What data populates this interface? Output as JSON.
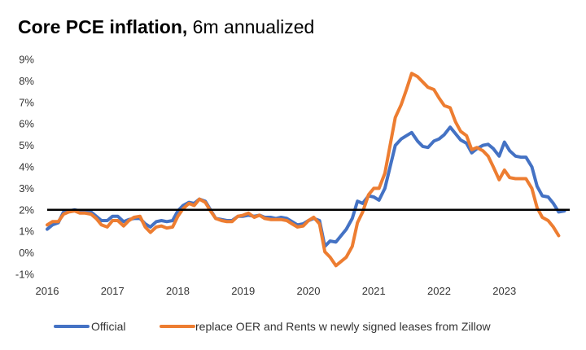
{
  "title": {
    "bold": "Core PCE inflation,",
    "rest": " 6m annualized"
  },
  "chart_data": {
    "type": "line",
    "title": "Core PCE inflation, 6m annualized",
    "xlabel": "",
    "ylabel": "",
    "xlim": [
      2016.0,
      2024.0
    ],
    "ylim": [
      -1,
      9
    ],
    "yticks": [
      "-1%",
      "0%",
      "1%",
      "2%",
      "3%",
      "4%",
      "5%",
      "6%",
      "7%",
      "8%",
      "9%"
    ],
    "xticks": [
      "2016",
      "2017",
      "2018",
      "2019",
      "2020",
      "2021",
      "2022",
      "2023"
    ],
    "grid": false,
    "legend": "bottom",
    "reference_line": {
      "y": 2,
      "color": "#000000"
    },
    "series": [
      {
        "name": "Official",
        "color": "#4472C4",
        "points": [
          [
            2016.0,
            1.1
          ],
          [
            2016.08,
            1.3
          ],
          [
            2016.17,
            1.4
          ],
          [
            2016.25,
            1.9
          ],
          [
            2016.33,
            1.95
          ],
          [
            2016.42,
            2.0
          ],
          [
            2016.5,
            1.95
          ],
          [
            2016.58,
            1.95
          ],
          [
            2016.67,
            1.9
          ],
          [
            2016.75,
            1.7
          ],
          [
            2016.83,
            1.5
          ],
          [
            2016.92,
            1.5
          ],
          [
            2017.0,
            1.7
          ],
          [
            2017.08,
            1.7
          ],
          [
            2017.17,
            1.45
          ],
          [
            2017.25,
            1.55
          ],
          [
            2017.33,
            1.6
          ],
          [
            2017.42,
            1.6
          ],
          [
            2017.5,
            1.35
          ],
          [
            2017.58,
            1.2
          ],
          [
            2017.67,
            1.45
          ],
          [
            2017.75,
            1.5
          ],
          [
            2017.83,
            1.45
          ],
          [
            2017.92,
            1.5
          ],
          [
            2018.0,
            1.95
          ],
          [
            2018.08,
            2.2
          ],
          [
            2018.17,
            2.35
          ],
          [
            2018.25,
            2.3
          ],
          [
            2018.33,
            2.5
          ],
          [
            2018.42,
            2.4
          ],
          [
            2018.5,
            2.0
          ],
          [
            2018.58,
            1.6
          ],
          [
            2018.67,
            1.55
          ],
          [
            2018.75,
            1.5
          ],
          [
            2018.83,
            1.5
          ],
          [
            2018.92,
            1.7
          ],
          [
            2019.0,
            1.7
          ],
          [
            2019.08,
            1.75
          ],
          [
            2019.17,
            1.7
          ],
          [
            2019.25,
            1.75
          ],
          [
            2019.33,
            1.65
          ],
          [
            2019.42,
            1.65
          ],
          [
            2019.5,
            1.6
          ],
          [
            2019.58,
            1.65
          ],
          [
            2019.67,
            1.6
          ],
          [
            2019.75,
            1.45
          ],
          [
            2019.83,
            1.3
          ],
          [
            2019.92,
            1.35
          ],
          [
            2020.0,
            1.5
          ],
          [
            2020.08,
            1.6
          ],
          [
            2020.17,
            1.5
          ],
          [
            2020.25,
            0.3
          ],
          [
            2020.33,
            0.55
          ],
          [
            2020.42,
            0.5
          ],
          [
            2020.5,
            0.8
          ],
          [
            2020.58,
            1.1
          ],
          [
            2020.67,
            1.6
          ],
          [
            2020.75,
            2.4
          ],
          [
            2020.83,
            2.3
          ],
          [
            2020.92,
            2.65
          ],
          [
            2021.0,
            2.6
          ],
          [
            2021.08,
            2.45
          ],
          [
            2021.17,
            3.0
          ],
          [
            2021.25,
            4.0
          ],
          [
            2021.33,
            5.0
          ],
          [
            2021.42,
            5.3
          ],
          [
            2021.5,
            5.45
          ],
          [
            2021.58,
            5.6
          ],
          [
            2021.67,
            5.2
          ],
          [
            2021.75,
            4.95
          ],
          [
            2021.83,
            4.9
          ],
          [
            2021.92,
            5.2
          ],
          [
            2022.0,
            5.3
          ],
          [
            2022.08,
            5.5
          ],
          [
            2022.17,
            5.85
          ],
          [
            2022.25,
            5.55
          ],
          [
            2022.33,
            5.25
          ],
          [
            2022.42,
            5.1
          ],
          [
            2022.5,
            4.65
          ],
          [
            2022.58,
            4.85
          ],
          [
            2022.67,
            5.0
          ],
          [
            2022.75,
            5.05
          ],
          [
            2022.83,
            4.85
          ],
          [
            2022.92,
            4.5
          ],
          [
            2023.0,
            5.15
          ],
          [
            2023.08,
            4.75
          ],
          [
            2023.17,
            4.5
          ],
          [
            2023.25,
            4.45
          ],
          [
            2023.33,
            4.45
          ],
          [
            2023.42,
            4.0
          ],
          [
            2023.5,
            3.1
          ],
          [
            2023.58,
            2.65
          ],
          [
            2023.67,
            2.6
          ],
          [
            2023.75,
            2.3
          ],
          [
            2023.83,
            1.9
          ],
          [
            2023.92,
            1.95
          ]
        ]
      },
      {
        "name": "replace OER and Rents w newly signed leases from Zillow",
        "color": "#ED7D31",
        "points": [
          [
            2016.0,
            1.3
          ],
          [
            2016.08,
            1.45
          ],
          [
            2016.17,
            1.45
          ],
          [
            2016.25,
            1.8
          ],
          [
            2016.33,
            1.9
          ],
          [
            2016.42,
            1.95
          ],
          [
            2016.5,
            1.85
          ],
          [
            2016.58,
            1.85
          ],
          [
            2016.67,
            1.8
          ],
          [
            2016.75,
            1.6
          ],
          [
            2016.83,
            1.3
          ],
          [
            2016.92,
            1.2
          ],
          [
            2017.0,
            1.5
          ],
          [
            2017.08,
            1.5
          ],
          [
            2017.17,
            1.25
          ],
          [
            2017.25,
            1.5
          ],
          [
            2017.33,
            1.65
          ],
          [
            2017.42,
            1.7
          ],
          [
            2017.5,
            1.2
          ],
          [
            2017.58,
            0.95
          ],
          [
            2017.67,
            1.2
          ],
          [
            2017.75,
            1.25
          ],
          [
            2017.83,
            1.15
          ],
          [
            2017.92,
            1.2
          ],
          [
            2018.0,
            1.7
          ],
          [
            2018.08,
            2.05
          ],
          [
            2018.17,
            2.3
          ],
          [
            2018.25,
            2.2
          ],
          [
            2018.33,
            2.5
          ],
          [
            2018.42,
            2.35
          ],
          [
            2018.5,
            1.95
          ],
          [
            2018.58,
            1.6
          ],
          [
            2018.67,
            1.5
          ],
          [
            2018.75,
            1.45
          ],
          [
            2018.83,
            1.45
          ],
          [
            2018.92,
            1.7
          ],
          [
            2019.0,
            1.75
          ],
          [
            2019.08,
            1.85
          ],
          [
            2019.17,
            1.65
          ],
          [
            2019.25,
            1.75
          ],
          [
            2019.33,
            1.6
          ],
          [
            2019.42,
            1.55
          ],
          [
            2019.5,
            1.55
          ],
          [
            2019.58,
            1.55
          ],
          [
            2019.67,
            1.5
          ],
          [
            2019.75,
            1.35
          ],
          [
            2019.83,
            1.2
          ],
          [
            2019.92,
            1.25
          ],
          [
            2020.0,
            1.5
          ],
          [
            2020.08,
            1.65
          ],
          [
            2020.17,
            1.35
          ],
          [
            2020.25,
            0.05
          ],
          [
            2020.33,
            -0.2
          ],
          [
            2020.42,
            -0.6
          ],
          [
            2020.5,
            -0.4
          ],
          [
            2020.58,
            -0.2
          ],
          [
            2020.67,
            0.3
          ],
          [
            2020.75,
            1.4
          ],
          [
            2020.83,
            1.9
          ],
          [
            2020.92,
            2.7
          ],
          [
            2021.0,
            3.0
          ],
          [
            2021.08,
            3.0
          ],
          [
            2021.17,
            3.7
          ],
          [
            2021.25,
            5.0
          ],
          [
            2021.33,
            6.3
          ],
          [
            2021.42,
            6.9
          ],
          [
            2021.5,
            7.6
          ],
          [
            2021.58,
            8.35
          ],
          [
            2021.67,
            8.2
          ],
          [
            2021.75,
            7.95
          ],
          [
            2021.83,
            7.7
          ],
          [
            2021.92,
            7.6
          ],
          [
            2022.0,
            7.2
          ],
          [
            2022.08,
            6.85
          ],
          [
            2022.17,
            6.75
          ],
          [
            2022.25,
            6.1
          ],
          [
            2022.33,
            5.65
          ],
          [
            2022.42,
            5.45
          ],
          [
            2022.5,
            4.8
          ],
          [
            2022.58,
            4.9
          ],
          [
            2022.67,
            4.75
          ],
          [
            2022.75,
            4.5
          ],
          [
            2022.83,
            4.0
          ],
          [
            2022.92,
            3.4
          ],
          [
            2023.0,
            3.85
          ],
          [
            2023.08,
            3.5
          ],
          [
            2023.17,
            3.45
          ],
          [
            2023.25,
            3.45
          ],
          [
            2023.33,
            3.45
          ],
          [
            2023.42,
            3.0
          ],
          [
            2023.5,
            2.1
          ],
          [
            2023.58,
            1.65
          ],
          [
            2023.67,
            1.5
          ],
          [
            2023.75,
            1.2
          ],
          [
            2023.83,
            0.8
          ]
        ]
      }
    ]
  }
}
